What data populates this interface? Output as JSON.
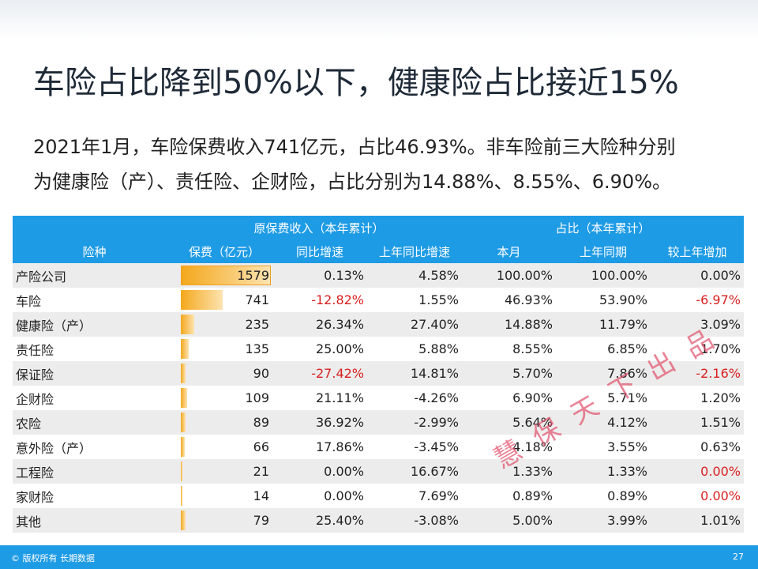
{
  "slide": {
    "title": "车险占比降到50%以下，健康险占比接近15%",
    "body_lines": [
      "2021年1月，车险保费收入741亿元，占比46.93%。非车险前三大险种分别",
      "为健康险（产）、责任险、企财险，占比分别为14.88%、8.55%、6.90%。"
    ]
  },
  "table": {
    "group_headers": {
      "premium": "原保费收入（本年累计）",
      "share": "占比（本年累计）"
    },
    "headers": [
      "险种",
      "保费（亿元）",
      "同比增速",
      "上年同比增速",
      "本月",
      "上年同期",
      "较上年增加"
    ],
    "rows": [
      {
        "name": "产险公司",
        "premium": "1579",
        "premium_value": 1579,
        "yoy": "0.13%",
        "prev_yoy": "4.58%",
        "share": "100.00%",
        "prev_share": "100.00%",
        "change": "0.00%",
        "yoy_neg": false,
        "change_neg": false
      },
      {
        "name": "车险",
        "premium": "741",
        "premium_value": 741,
        "yoy": "-12.82%",
        "prev_yoy": "1.55%",
        "share": "46.93%",
        "prev_share": "53.90%",
        "change": "-6.97%",
        "yoy_neg": true,
        "change_neg": true
      },
      {
        "name": "健康险（产）",
        "premium": "235",
        "premium_value": 235,
        "yoy": "26.34%",
        "prev_yoy": "27.40%",
        "share": "14.88%",
        "prev_share": "11.79%",
        "change": "3.09%",
        "yoy_neg": false,
        "change_neg": false
      },
      {
        "name": "责任险",
        "premium": "135",
        "premium_value": 135,
        "yoy": "25.00%",
        "prev_yoy": "5.88%",
        "share": "8.55%",
        "prev_share": "6.85%",
        "change": "1.70%",
        "yoy_neg": false,
        "change_neg": false
      },
      {
        "name": "保证险",
        "premium": "90",
        "premium_value": 90,
        "yoy": "-27.42%",
        "prev_yoy": "14.81%",
        "share": "5.70%",
        "prev_share": "7.86%",
        "change": "-2.16%",
        "yoy_neg": true,
        "change_neg": true
      },
      {
        "name": "企财险",
        "premium": "109",
        "premium_value": 109,
        "yoy": "21.11%",
        "prev_yoy": "-4.26%",
        "share": "6.90%",
        "prev_share": "5.71%",
        "change": "1.20%",
        "yoy_neg": false,
        "change_neg": false
      },
      {
        "name": "农险",
        "premium": "89",
        "premium_value": 89,
        "yoy": "36.92%",
        "prev_yoy": "-2.99%",
        "share": "5.64%",
        "prev_share": "4.12%",
        "change": "1.51%",
        "yoy_neg": false,
        "change_neg": false
      },
      {
        "name": "意外险（产）",
        "premium": "66",
        "premium_value": 66,
        "yoy": "17.86%",
        "prev_yoy": "-3.45%",
        "share": "4.18%",
        "prev_share": "3.55%",
        "change": "0.63%",
        "yoy_neg": false,
        "change_neg": false
      },
      {
        "name": "工程险",
        "premium": "21",
        "premium_value": 21,
        "yoy": "0.00%",
        "prev_yoy": "16.67%",
        "share": "1.33%",
        "prev_share": "1.33%",
        "change": "0.00%",
        "yoy_neg": false,
        "change_neg": true
      },
      {
        "name": "家财险",
        "premium": "14",
        "premium_value": 14,
        "yoy": "0.00%",
        "prev_yoy": "7.69%",
        "share": "0.89%",
        "prev_share": "0.89%",
        "change": "0.00%",
        "yoy_neg": false,
        "change_neg": true
      },
      {
        "name": "其他",
        "premium": "79",
        "premium_value": 79,
        "yoy": "25.40%",
        "prev_yoy": "-3.08%",
        "share": "5.00%",
        "prev_share": "3.99%",
        "change": "1.01%",
        "yoy_neg": false,
        "change_neg": false
      }
    ]
  },
  "watermark": "慧保天下出品",
  "footer": {
    "copyright": "© 版权所有 长期数据",
    "page_number": "27"
  },
  "colors": {
    "header_bg": "#1e9be5",
    "negative": "#d92020",
    "bar": "#f4a81d"
  }
}
